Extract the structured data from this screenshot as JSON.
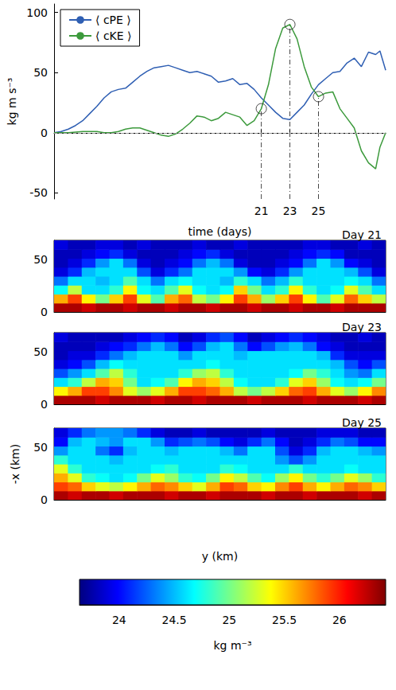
{
  "chart_data": [
    {
      "type": "line",
      "xlabel": "time (days)",
      "ylabel": "kg m s⁻³",
      "xlim": [
        6.5,
        29.7
      ],
      "ylim": [
        -55,
        107
      ],
      "xticks": [
        21,
        23,
        25
      ],
      "yticks": [
        -50,
        0,
        50,
        100
      ],
      "legend": "upper left",
      "hlines": [
        0
      ],
      "x": [
        6.5,
        7,
        7.5,
        8,
        8.5,
        9,
        9.5,
        10,
        10.5,
        11,
        11.5,
        12,
        12.5,
        13,
        13.5,
        14,
        14.5,
        15,
        15.5,
        16,
        16.5,
        17,
        17.5,
        18,
        18.5,
        19,
        19.5,
        20,
        20.5,
        21,
        21.5,
        22,
        22.5,
        23,
        23.5,
        24,
        24.5,
        25,
        25.5,
        26,
        26.5,
        27,
        27.5,
        28,
        28.5,
        29,
        29.3,
        29.7
      ],
      "series": [
        {
          "name": "⟨ cPE ⟩",
          "color": "#2f5fb3",
          "values": [
            0,
            1,
            3,
            6,
            10,
            16,
            22,
            29,
            34,
            36,
            37,
            42,
            47,
            51,
            54,
            55,
            56,
            54,
            52,
            50,
            51,
            49,
            47,
            42,
            43,
            45,
            40,
            41,
            36,
            29,
            23,
            17,
            12,
            11,
            17,
            23,
            32,
            40,
            45,
            50,
            51,
            58,
            62,
            55,
            67,
            65,
            68,
            52
          ]
        },
        {
          "name": "⟨ cKE ⟩",
          "color": "#3c9a3c",
          "marked_x": [
            21,
            23,
            25
          ],
          "values": [
            0,
            0,
            0,
            0.5,
            1,
            1,
            1,
            0,
            0,
            1,
            3,
            4,
            4,
            2,
            0,
            -2,
            -3,
            -1,
            3,
            8,
            14,
            13,
            10,
            12,
            17,
            15,
            13,
            6,
            10,
            20,
            40,
            70,
            87,
            90,
            78,
            55,
            38,
            30,
            33,
            34,
            20,
            12,
            4,
            -15,
            -25,
            -30,
            -12,
            0
          ]
        }
      ]
    },
    {
      "type": "heatmap",
      "title": "Day 21",
      "tick_labels": "y",
      "xlim": [
        0,
        240
      ],
      "ylim": [
        0,
        68
      ],
      "yticks": [
        0,
        50
      ],
      "x": [
        5,
        15,
        25,
        35,
        45,
        55,
        65,
        75,
        85,
        95,
        105,
        115,
        125,
        135,
        145,
        155,
        165,
        175,
        185,
        195,
        205,
        215,
        225,
        235
      ],
      "y": [
        4.25,
        12.75,
        21.25,
        29.75,
        38.25,
        46.75,
        55.25,
        63.75
      ],
      "values": [
        [
          26.3,
          26.3,
          26.2,
          26.3,
          26.3,
          26.2,
          26.3,
          26.3,
          26.2,
          26.3,
          26.3,
          26.2,
          26.3,
          26.3,
          26.2,
          26.3,
          26.3,
          26.2,
          26.3,
          26.3,
          26.2,
          26.3,
          26.3,
          26.3
        ],
        [
          25.6,
          25.9,
          25.4,
          25.0,
          25.5,
          25.9,
          25.3,
          24.9,
          25.6,
          25.8,
          25.2,
          25.0,
          25.4,
          25.9,
          25.6,
          25.1,
          25.5,
          25.9,
          25.4,
          24.9,
          25.3,
          25.8,
          25.5,
          25.2
        ],
        [
          24.7,
          25.2,
          24.6,
          24.6,
          24.8,
          25.4,
          24.7,
          24.6,
          24.9,
          25.3,
          24.7,
          24.6,
          24.7,
          25.5,
          25.0,
          24.6,
          24.8,
          25.4,
          24.8,
          24.6,
          24.7,
          25.3,
          24.9,
          24.6
        ],
        [
          24.3,
          24.6,
          24.6,
          24.5,
          24.6,
          24.9,
          24.6,
          24.3,
          24.6,
          24.7,
          24.6,
          24.6,
          24.5,
          24.8,
          24.6,
          24.3,
          24.5,
          24.8,
          24.6,
          24.6,
          24.6,
          24.7,
          24.6,
          24.3
        ],
        [
          23.9,
          24.1,
          24.5,
          24.6,
          24.6,
          24.6,
          24.2,
          23.9,
          24.1,
          24.3,
          24.6,
          24.6,
          24.6,
          24.4,
          24.0,
          23.9,
          24.1,
          24.4,
          24.6,
          24.6,
          24.6,
          24.5,
          24.2,
          23.9
        ],
        [
          23.8,
          23.9,
          24.1,
          24.4,
          24.6,
          24.3,
          23.9,
          23.8,
          23.9,
          24.0,
          24.3,
          24.5,
          24.3,
          23.9,
          23.8,
          23.8,
          23.9,
          24.0,
          24.3,
          24.6,
          24.4,
          24.0,
          23.9,
          23.8
        ],
        [
          23.8,
          23.8,
          23.9,
          24.0,
          24.1,
          23.9,
          23.8,
          23.8,
          23.8,
          23.9,
          24.0,
          24.1,
          23.9,
          23.8,
          23.8,
          23.8,
          23.8,
          23.9,
          24.0,
          24.1,
          24.0,
          23.8,
          23.8,
          23.8
        ],
        [
          23.9,
          23.8,
          23.8,
          23.9,
          23.9,
          23.8,
          23.9,
          23.8,
          23.8,
          23.8,
          23.9,
          23.8,
          23.8,
          23.9,
          23.8,
          23.8,
          23.8,
          23.8,
          23.9,
          23.9,
          23.8,
          23.8,
          23.9,
          23.8
        ]
      ]
    },
    {
      "type": "heatmap",
      "title": "Day 23",
      "tick_labels": "y",
      "xlim": [
        0,
        240
      ],
      "ylim": [
        0,
        68
      ],
      "yticks": [
        0,
        50
      ],
      "x": [
        5,
        15,
        25,
        35,
        45,
        55,
        65,
        75,
        85,
        95,
        105,
        115,
        125,
        135,
        145,
        155,
        165,
        175,
        185,
        195,
        205,
        215,
        225,
        235
      ],
      "y": [
        4.25,
        12.75,
        21.25,
        29.75,
        38.25,
        46.75,
        55.25,
        63.75
      ],
      "values": [
        [
          26.3,
          26.3,
          26.3,
          26.2,
          26.3,
          26.3,
          26.3,
          26.2,
          26.3,
          26.3,
          26.2,
          26.3,
          26.3,
          26.3,
          26.2,
          26.3,
          26.3,
          26.3,
          26.2,
          26.3,
          26.3,
          26.3,
          26.2,
          26.3
        ],
        [
          25.4,
          25.6,
          25.9,
          25.9,
          25.7,
          25.3,
          25.1,
          25.3,
          25.6,
          25.9,
          25.9,
          25.8,
          25.6,
          25.2,
          25.0,
          25.2,
          25.5,
          25.8,
          25.9,
          25.6,
          25.3,
          25.1,
          25.4,
          25.7
        ],
        [
          24.6,
          24.8,
          25.2,
          25.6,
          25.5,
          25.0,
          24.6,
          24.7,
          24.9,
          25.4,
          25.6,
          25.5,
          25.2,
          24.7,
          24.6,
          24.6,
          24.8,
          25.3,
          25.5,
          25.1,
          24.7,
          24.6,
          24.7,
          25.0
        ],
        [
          24.2,
          24.4,
          24.6,
          24.9,
          25.2,
          24.8,
          24.6,
          24.6,
          24.6,
          24.8,
          25.1,
          25.2,
          24.8,
          24.6,
          24.6,
          24.6,
          24.6,
          24.7,
          25.0,
          24.8,
          24.6,
          24.4,
          24.3,
          24.6
        ],
        [
          23.9,
          24.0,
          24.2,
          24.5,
          24.7,
          24.6,
          24.6,
          24.6,
          24.6,
          24.6,
          24.6,
          24.7,
          24.6,
          24.6,
          24.6,
          24.6,
          24.6,
          24.6,
          24.6,
          24.6,
          24.5,
          24.2,
          24.0,
          24.2
        ],
        [
          23.8,
          23.9,
          23.9,
          24.1,
          24.3,
          24.5,
          24.6,
          24.6,
          24.6,
          24.4,
          24.6,
          24.6,
          24.6,
          24.5,
          24.6,
          24.6,
          24.6,
          24.6,
          24.6,
          24.5,
          24.1,
          23.9,
          23.9,
          23.9
        ],
        [
          23.8,
          23.8,
          23.8,
          23.9,
          24.0,
          24.1,
          24.3,
          24.5,
          24.3,
          24.0,
          24.2,
          24.5,
          24.6,
          24.3,
          24.0,
          24.2,
          24.4,
          24.5,
          24.3,
          24.0,
          23.9,
          23.8,
          23.8,
          23.8
        ],
        [
          23.9,
          23.8,
          23.8,
          23.8,
          23.8,
          23.9,
          24.0,
          24.1,
          24.0,
          23.8,
          23.9,
          24.1,
          24.2,
          24.0,
          23.8,
          23.9,
          24.0,
          24.1,
          24.0,
          23.9,
          23.8,
          23.8,
          23.9,
          23.8
        ]
      ]
    },
    {
      "type": "heatmap",
      "title": "Day 25",
      "tick_labels": "y",
      "xlabel": "y (km)",
      "ylabel": "-x (km)",
      "xlim": [
        0,
        240
      ],
      "ylim": [
        0,
        68
      ],
      "yticks": [
        0,
        50
      ],
      "x": [
        5,
        15,
        25,
        35,
        45,
        55,
        65,
        75,
        85,
        95,
        105,
        115,
        125,
        135,
        145,
        155,
        165,
        175,
        185,
        195,
        205,
        215,
        225,
        235
      ],
      "y": [
        4.25,
        12.75,
        21.25,
        29.75,
        38.25,
        46.75,
        55.25,
        63.75
      ],
      "values": [
        [
          26.3,
          26.2,
          26.3,
          26.3,
          26.2,
          26.3,
          26.3,
          26.3,
          26.2,
          26.3,
          26.3,
          26.2,
          26.3,
          26.3,
          26.3,
          26.2,
          26.3,
          26.3,
          26.2,
          26.3,
          26.3,
          26.3,
          26.2,
          26.3
        ],
        [
          25.9,
          25.8,
          25.5,
          25.3,
          25.2,
          25.4,
          25.6,
          25.8,
          25.7,
          25.5,
          25.3,
          25.6,
          25.9,
          25.8,
          25.5,
          25.4,
          25.7,
          25.9,
          25.6,
          25.4,
          25.6,
          25.8,
          25.7,
          25.5
        ],
        [
          25.6,
          25.3,
          24.8,
          24.7,
          24.6,
          24.7,
          25.0,
          25.3,
          25.1,
          24.8,
          24.7,
          25.0,
          25.4,
          25.2,
          24.9,
          24.7,
          25.1,
          25.4,
          25.0,
          24.8,
          25.0,
          25.3,
          25.1,
          24.8
        ],
        [
          25.3,
          24.8,
          24.6,
          24.6,
          24.6,
          24.6,
          24.6,
          24.7,
          24.8,
          24.6,
          24.6,
          24.6,
          24.8,
          24.7,
          24.6,
          24.6,
          24.6,
          24.8,
          24.6,
          24.6,
          24.6,
          24.7,
          24.6,
          24.6
        ],
        [
          24.8,
          24.6,
          24.6,
          24.6,
          24.5,
          24.6,
          24.6,
          24.6,
          24.6,
          24.6,
          24.6,
          24.6,
          24.6,
          24.6,
          24.6,
          24.6,
          24.4,
          24.2,
          24.4,
          24.6,
          24.6,
          24.6,
          24.6,
          24.6
        ],
        [
          24.4,
          24.6,
          24.6,
          24.3,
          24.1,
          24.5,
          24.6,
          24.6,
          24.5,
          24.6,
          24.6,
          24.6,
          24.5,
          24.3,
          24.6,
          24.6,
          24.2,
          23.9,
          24.1,
          24.5,
          24.6,
          24.6,
          24.5,
          24.4
        ],
        [
          24.0,
          24.5,
          24.6,
          24.5,
          24.4,
          24.6,
          24.6,
          24.4,
          24.1,
          24.2,
          24.3,
          24.2,
          24.0,
          23.9,
          24.1,
          24.3,
          24.0,
          23.8,
          23.9,
          24.1,
          24.3,
          24.2,
          24.0,
          24.0
        ],
        [
          23.9,
          24.1,
          24.3,
          24.4,
          24.4,
          24.3,
          24.1,
          23.9,
          23.8,
          23.8,
          23.9,
          23.8,
          23.8,
          23.8,
          23.8,
          23.9,
          23.8,
          23.8,
          23.8,
          23.9,
          23.9,
          23.9,
          23.8,
          23.8
        ]
      ],
      "colorbar": {
        "range": [
          23.64,
          26.42
        ],
        "ticks": [
          24,
          24.5,
          25,
          25.5,
          26
        ],
        "label": "kg m⁻³"
      }
    }
  ]
}
